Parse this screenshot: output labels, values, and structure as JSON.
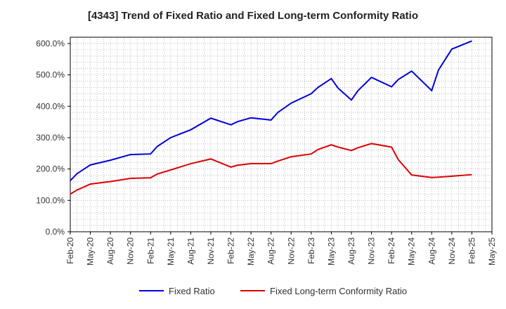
{
  "chart_data": {
    "type": "line",
    "title": "[4343]  Trend of Fixed Ratio and Fixed Long-term Conformity Ratio",
    "xlabel": "",
    "ylabel": "",
    "ylim": [
      0,
      620
    ],
    "y_ticks": [
      "0.0%",
      "100.0%",
      "200.0%",
      "300.0%",
      "400.0%",
      "500.0%",
      "600.0%"
    ],
    "x_ticks": [
      "Feb-20",
      "May-20",
      "Aug-20",
      "Nov-20",
      "Feb-21",
      "May-21",
      "Aug-21",
      "Nov-21",
      "Feb-22",
      "May-22",
      "Aug-22",
      "Nov-22",
      "Feb-23",
      "May-23",
      "Aug-23",
      "Nov-23",
      "Feb-24",
      "May-24",
      "Aug-24",
      "Nov-24",
      "Feb-25",
      "May-25"
    ],
    "x": [
      "Feb-20",
      "Mar-20",
      "May-20",
      "Aug-20",
      "Nov-20",
      "Feb-21",
      "Mar-21",
      "May-21",
      "Aug-21",
      "Nov-21",
      "Feb-22",
      "Mar-22",
      "May-22",
      "Aug-22",
      "Sep-22",
      "Nov-22",
      "Feb-23",
      "Mar-23",
      "May-23",
      "Jun-23",
      "Aug-23",
      "Sep-23",
      "Nov-23",
      "Feb-24",
      "Mar-24",
      "May-24",
      "Aug-24",
      "Sep-24",
      "Nov-24",
      "Feb-25"
    ],
    "grid": true,
    "legend_position": "bottom",
    "series": [
      {
        "name": "Fixed Ratio",
        "color": "#0000dd",
        "values": [
          163,
          185,
          213,
          228,
          246,
          248,
          272,
          300,
          325,
          362,
          341,
          351,
          363,
          356,
          380,
          410,
          440,
          460,
          488,
          458,
          420,
          450,
          492,
          462,
          485,
          512,
          450,
          515,
          582,
          608
        ]
      },
      {
        "name": "Fixed Long-term Conformity Ratio",
        "color": "#dd0000",
        "values": [
          120,
          133,
          152,
          160,
          170,
          172,
          184,
          197,
          217,
          232,
          206,
          212,
          217,
          217,
          225,
          239,
          248,
          262,
          277,
          270,
          259,
          268,
          281,
          270,
          230,
          181,
          173,
          174,
          177,
          182
        ]
      }
    ]
  }
}
